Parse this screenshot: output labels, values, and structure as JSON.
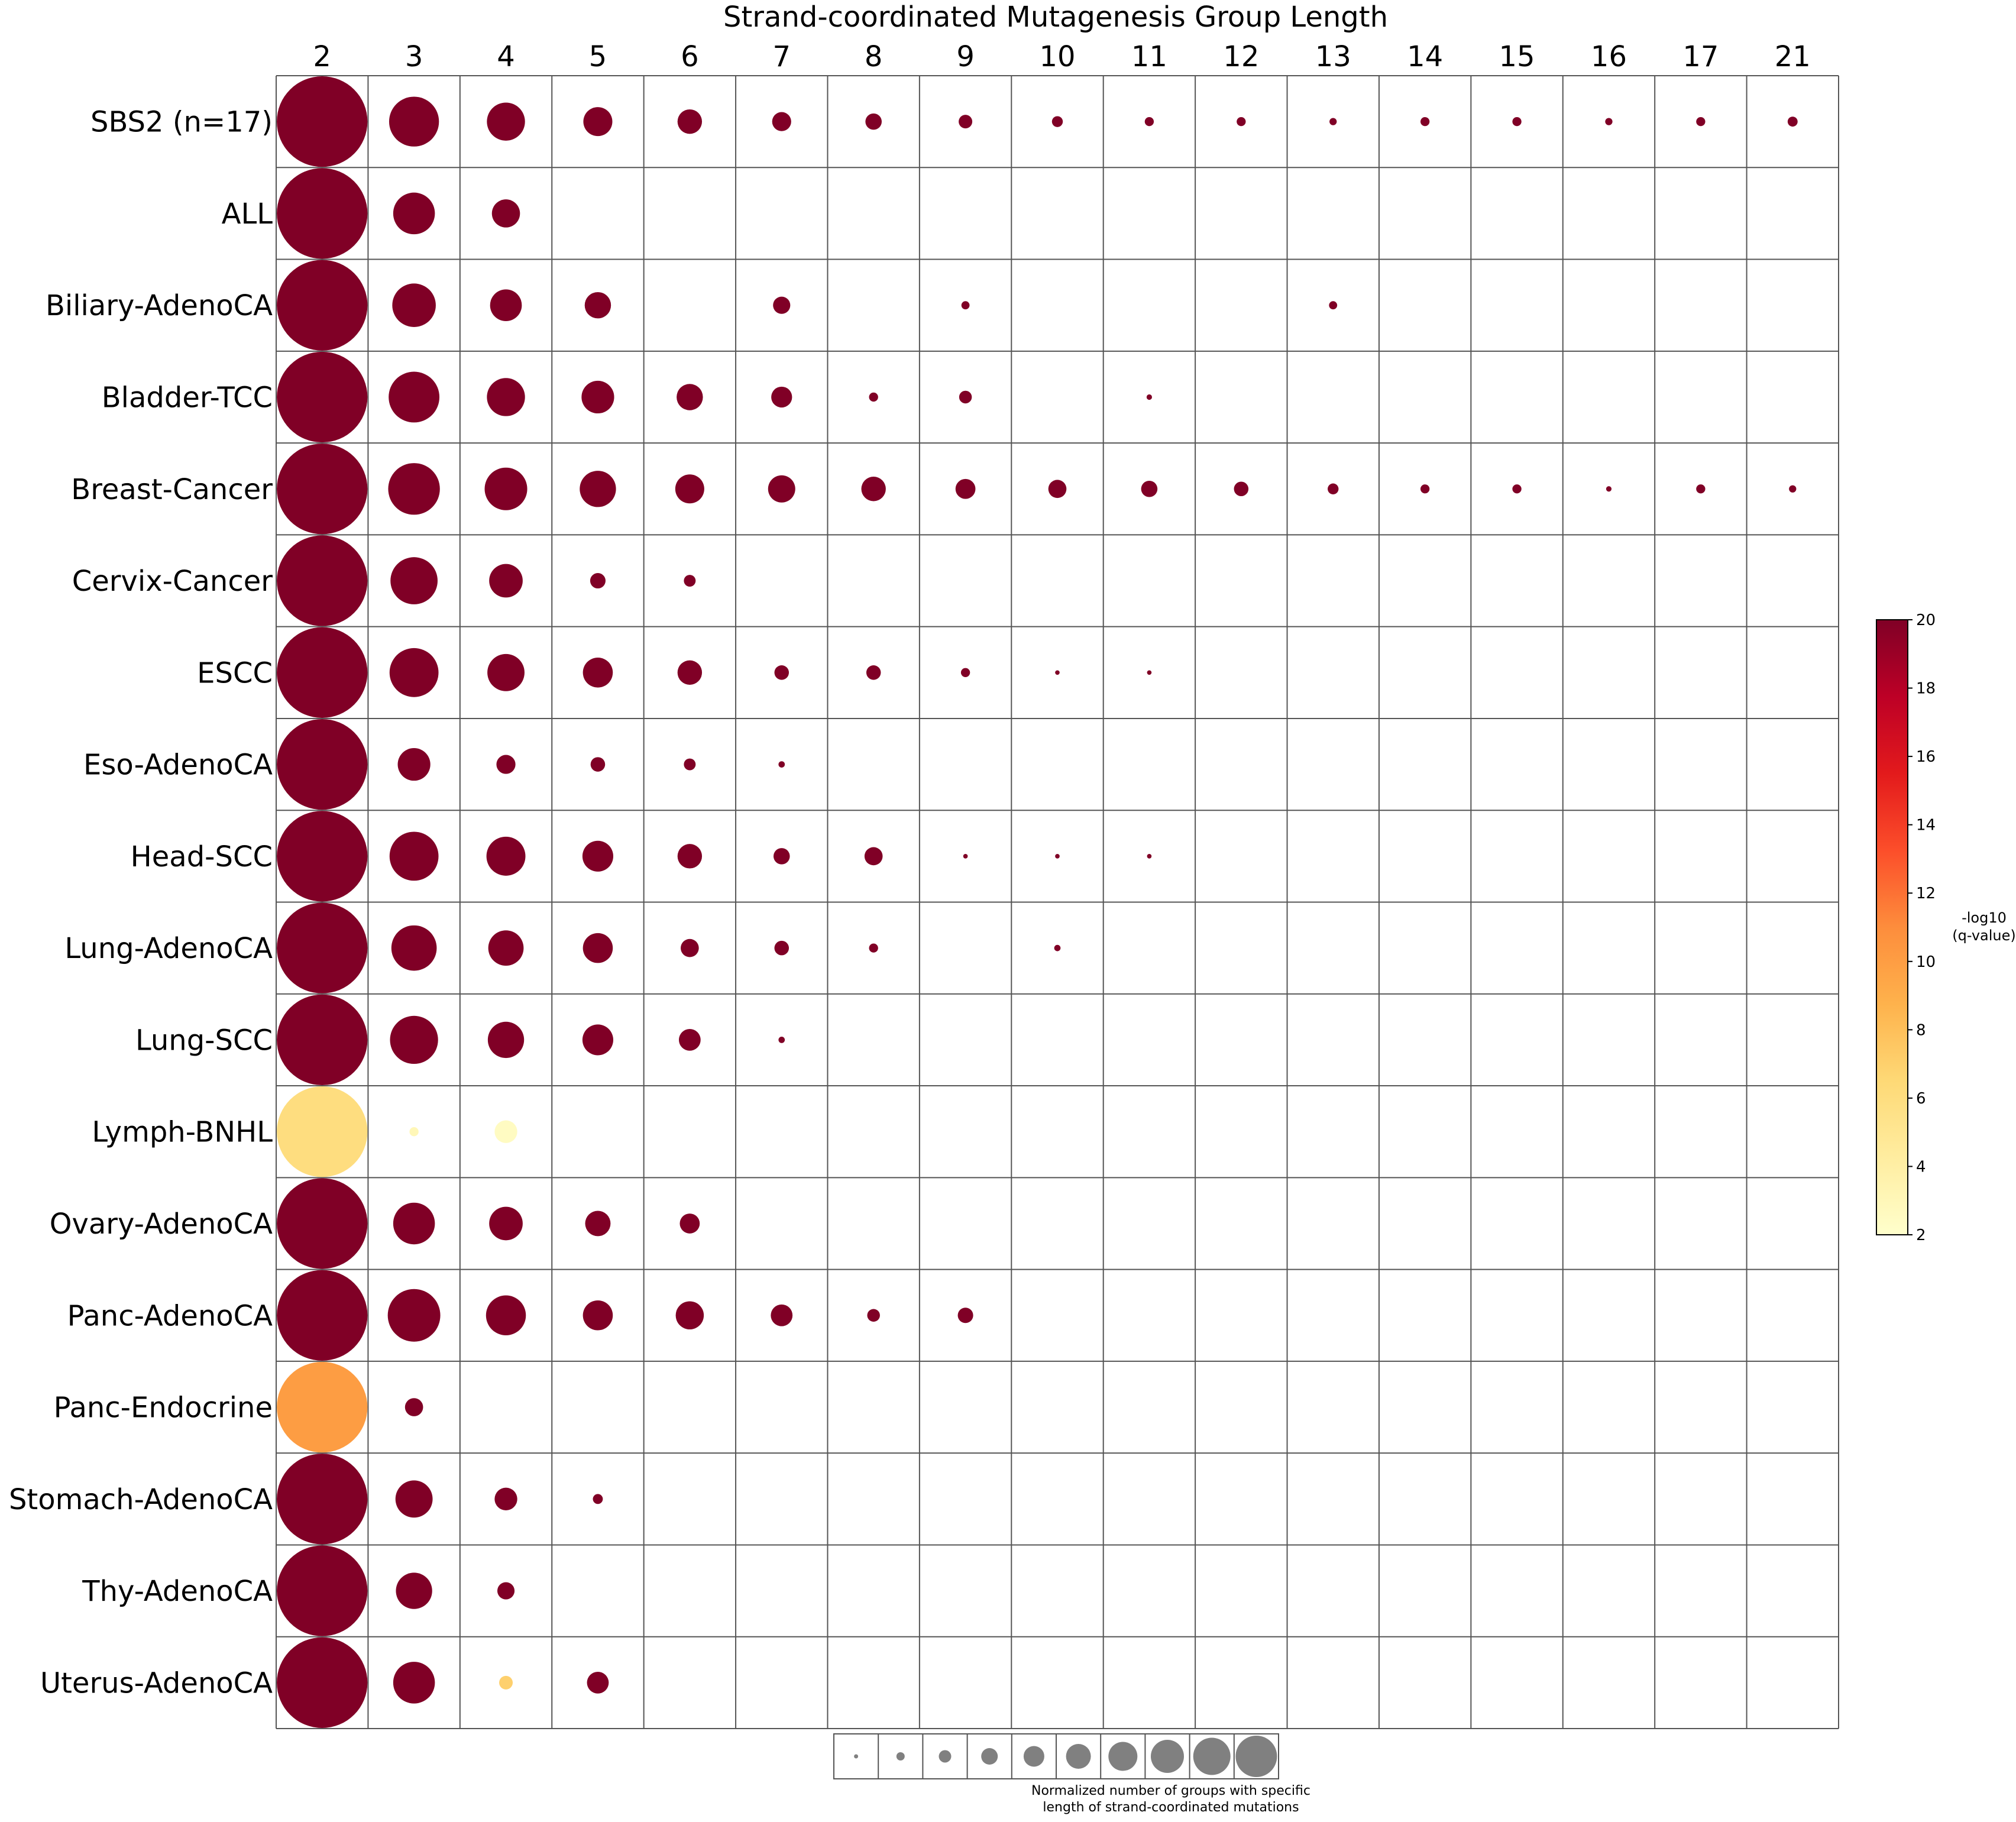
{
  "chart_data": {
    "type": "bubble-grid",
    "title": "Strand-coordinated Mutagenesis Group Length",
    "columns": [
      "2",
      "3",
      "4",
      "5",
      "6",
      "7",
      "8",
      "9",
      "10",
      "11",
      "12",
      "13",
      "14",
      "15",
      "16",
      "17",
      "21"
    ],
    "rows": [
      {
        "label": "SBS2 (n=17)",
        "cells": [
          {
            "col": "2",
            "size": 1.0,
            "q": 20
          },
          {
            "col": "3",
            "size": 0.55,
            "q": 20
          },
          {
            "col": "4",
            "size": 0.42,
            "q": 20
          },
          {
            "col": "5",
            "size": 0.32,
            "q": 20
          },
          {
            "col": "6",
            "size": 0.27,
            "q": 20
          },
          {
            "col": "7",
            "size": 0.21,
            "q": 20
          },
          {
            "col": "8",
            "size": 0.18,
            "q": 20
          },
          {
            "col": "9",
            "size": 0.15,
            "q": 20
          },
          {
            "col": "10",
            "size": 0.12,
            "q": 20
          },
          {
            "col": "11",
            "size": 0.1,
            "q": 20
          },
          {
            "col": "12",
            "size": 0.1,
            "q": 20
          },
          {
            "col": "13",
            "size": 0.08,
            "q": 20
          },
          {
            "col": "14",
            "size": 0.1,
            "q": 20
          },
          {
            "col": "15",
            "size": 0.1,
            "q": 20
          },
          {
            "col": "16",
            "size": 0.08,
            "q": 20
          },
          {
            "col": "17",
            "size": 0.1,
            "q": 20
          },
          {
            "col": "21",
            "size": 0.11,
            "q": 20
          }
        ]
      },
      {
        "label": "ALL",
        "cells": [
          {
            "col": "2",
            "size": 1.0,
            "q": 20
          },
          {
            "col": "3",
            "size": 0.46,
            "q": 20
          },
          {
            "col": "4",
            "size": 0.31,
            "q": 20
          }
        ]
      },
      {
        "label": "Biliary-AdenoCA",
        "cells": [
          {
            "col": "2",
            "size": 1.0,
            "q": 20
          },
          {
            "col": "3",
            "size": 0.48,
            "q": 20
          },
          {
            "col": "4",
            "size": 0.35,
            "q": 20
          },
          {
            "col": "5",
            "size": 0.29,
            "q": 20
          },
          {
            "col": "7",
            "size": 0.19,
            "q": 20
          },
          {
            "col": "9",
            "size": 0.09,
            "q": 20
          },
          {
            "col": "13",
            "size": 0.09,
            "q": 20
          }
        ]
      },
      {
        "label": "Bladder-TCC",
        "cells": [
          {
            "col": "2",
            "size": 1.0,
            "q": 20
          },
          {
            "col": "3",
            "size": 0.56,
            "q": 20
          },
          {
            "col": "4",
            "size": 0.42,
            "q": 20
          },
          {
            "col": "5",
            "size": 0.36,
            "q": 20
          },
          {
            "col": "6",
            "size": 0.29,
            "q": 20
          },
          {
            "col": "7",
            "size": 0.23,
            "q": 20
          },
          {
            "col": "8",
            "size": 0.1,
            "q": 20
          },
          {
            "col": "9",
            "size": 0.14,
            "q": 20
          },
          {
            "col": "11",
            "size": 0.06,
            "q": 20
          }
        ]
      },
      {
        "label": "Breast-Cancer",
        "cells": [
          {
            "col": "2",
            "size": 1.0,
            "q": 20
          },
          {
            "col": "3",
            "size": 0.57,
            "q": 20
          },
          {
            "col": "4",
            "size": 0.47,
            "q": 20
          },
          {
            "col": "5",
            "size": 0.4,
            "q": 20
          },
          {
            "col": "6",
            "size": 0.32,
            "q": 20
          },
          {
            "col": "7",
            "size": 0.3,
            "q": 20
          },
          {
            "col": "8",
            "size": 0.27,
            "q": 20
          },
          {
            "col": "9",
            "size": 0.22,
            "q": 20
          },
          {
            "col": "10",
            "size": 0.2,
            "q": 20
          },
          {
            "col": "11",
            "size": 0.18,
            "q": 20
          },
          {
            "col": "12",
            "size": 0.16,
            "q": 20
          },
          {
            "col": "13",
            "size": 0.12,
            "q": 20
          },
          {
            "col": "14",
            "size": 0.1,
            "q": 20
          },
          {
            "col": "15",
            "size": 0.1,
            "q": 20
          },
          {
            "col": "16",
            "size": 0.06,
            "q": 20
          },
          {
            "col": "17",
            "size": 0.1,
            "q": 20
          },
          {
            "col": "21",
            "size": 0.08,
            "q": 20
          }
        ]
      },
      {
        "label": "Cervix-Cancer",
        "cells": [
          {
            "col": "2",
            "size": 1.0,
            "q": 20
          },
          {
            "col": "3",
            "size": 0.52,
            "q": 20
          },
          {
            "col": "4",
            "size": 0.37,
            "q": 20
          },
          {
            "col": "5",
            "size": 0.17,
            "q": 20
          },
          {
            "col": "6",
            "size": 0.13,
            "q": 20
          }
        ]
      },
      {
        "label": "ESCC",
        "cells": [
          {
            "col": "2",
            "size": 1.0,
            "q": 20
          },
          {
            "col": "3",
            "size": 0.54,
            "q": 20
          },
          {
            "col": "4",
            "size": 0.41,
            "q": 20
          },
          {
            "col": "5",
            "size": 0.33,
            "q": 20
          },
          {
            "col": "6",
            "size": 0.27,
            "q": 20
          },
          {
            "col": "7",
            "size": 0.16,
            "q": 20
          },
          {
            "col": "8",
            "size": 0.16,
            "q": 20
          },
          {
            "col": "9",
            "size": 0.1,
            "q": 20
          },
          {
            "col": "10",
            "size": 0.05,
            "q": 20
          },
          {
            "col": "11",
            "size": 0.05,
            "q": 20
          }
        ]
      },
      {
        "label": "Eso-AdenoCA",
        "cells": [
          {
            "col": "2",
            "size": 1.0,
            "q": 20
          },
          {
            "col": "3",
            "size": 0.36,
            "q": 20
          },
          {
            "col": "4",
            "size": 0.21,
            "q": 20
          },
          {
            "col": "5",
            "size": 0.16,
            "q": 20
          },
          {
            "col": "6",
            "size": 0.13,
            "q": 20
          },
          {
            "col": "7",
            "size": 0.07,
            "q": 20
          }
        ]
      },
      {
        "label": "Head-SCC",
        "cells": [
          {
            "col": "2",
            "size": 1.0,
            "q": 20
          },
          {
            "col": "3",
            "size": 0.54,
            "q": 20
          },
          {
            "col": "4",
            "size": 0.43,
            "q": 20
          },
          {
            "col": "5",
            "size": 0.34,
            "q": 20
          },
          {
            "col": "6",
            "size": 0.27,
            "q": 20
          },
          {
            "col": "7",
            "size": 0.18,
            "q": 20
          },
          {
            "col": "8",
            "size": 0.2,
            "q": 20
          },
          {
            "col": "9",
            "size": 0.05,
            "q": 20
          },
          {
            "col": "10",
            "size": 0.05,
            "q": 20
          },
          {
            "col": "11",
            "size": 0.05,
            "q": 20
          }
        ]
      },
      {
        "label": "Lung-AdenoCA",
        "cells": [
          {
            "col": "2",
            "size": 1.0,
            "q": 20
          },
          {
            "col": "3",
            "size": 0.5,
            "q": 20
          },
          {
            "col": "4",
            "size": 0.39,
            "q": 20
          },
          {
            "col": "5",
            "size": 0.33,
            "q": 20
          },
          {
            "col": "6",
            "size": 0.2,
            "q": 20
          },
          {
            "col": "7",
            "size": 0.16,
            "q": 20
          },
          {
            "col": "8",
            "size": 0.1,
            "q": 20
          },
          {
            "col": "10",
            "size": 0.07,
            "q": 20
          }
        ]
      },
      {
        "label": "Lung-SCC",
        "cells": [
          {
            "col": "2",
            "size": 1.0,
            "q": 20
          },
          {
            "col": "3",
            "size": 0.53,
            "q": 20
          },
          {
            "col": "4",
            "size": 0.4,
            "q": 20
          },
          {
            "col": "5",
            "size": 0.34,
            "q": 20
          },
          {
            "col": "6",
            "size": 0.24,
            "q": 20
          },
          {
            "col": "7",
            "size": 0.07,
            "q": 20
          }
        ]
      },
      {
        "label": "Lymph-BNHL",
        "cells": [
          {
            "col": "2",
            "size": 1.0,
            "q": 6
          },
          {
            "col": "3",
            "size": 0.1,
            "q": 3
          },
          {
            "col": "4",
            "size": 0.25,
            "q": 2.5
          }
        ]
      },
      {
        "label": "Ovary-AdenoCA",
        "cells": [
          {
            "col": "2",
            "size": 1.0,
            "q": 20
          },
          {
            "col": "3",
            "size": 0.46,
            "q": 20
          },
          {
            "col": "4",
            "size": 0.37,
            "q": 20
          },
          {
            "col": "5",
            "size": 0.28,
            "q": 20
          },
          {
            "col": "6",
            "size": 0.22,
            "q": 20
          }
        ]
      },
      {
        "label": "Panc-AdenoCA",
        "cells": [
          {
            "col": "2",
            "size": 1.0,
            "q": 20
          },
          {
            "col": "3",
            "size": 0.58,
            "q": 20
          },
          {
            "col": "4",
            "size": 0.44,
            "q": 20
          },
          {
            "col": "5",
            "size": 0.33,
            "q": 20
          },
          {
            "col": "6",
            "size": 0.31,
            "q": 20
          },
          {
            "col": "7",
            "size": 0.24,
            "q": 20
          },
          {
            "col": "8",
            "size": 0.14,
            "q": 20
          },
          {
            "col": "9",
            "size": 0.17,
            "q": 20
          }
        ]
      },
      {
        "label": "Panc-Endocrine",
        "cells": [
          {
            "col": "2",
            "size": 1.0,
            "q": 10
          },
          {
            "col": "3",
            "size": 0.2,
            "q": 20
          }
        ]
      },
      {
        "label": "Stomach-AdenoCA",
        "cells": [
          {
            "col": "2",
            "size": 1.0,
            "q": 20
          },
          {
            "col": "3",
            "size": 0.41,
            "q": 20
          },
          {
            "col": "4",
            "size": 0.25,
            "q": 20
          },
          {
            "col": "5",
            "size": 0.11,
            "q": 20
          }
        ]
      },
      {
        "label": "Thy-AdenoCA",
        "cells": [
          {
            "col": "2",
            "size": 1.0,
            "q": 20
          },
          {
            "col": "3",
            "size": 0.4,
            "q": 20
          },
          {
            "col": "4",
            "size": 0.19,
            "q": 20
          }
        ]
      },
      {
        "label": "Uterus-AdenoCA",
        "cells": [
          {
            "col": "2",
            "size": 1.0,
            "q": 20
          },
          {
            "col": "3",
            "size": 0.46,
            "q": 20
          },
          {
            "col": "4",
            "size": 0.15,
            "q": 7
          },
          {
            "col": "5",
            "size": 0.24,
            "q": 20
          }
        ]
      }
    ],
    "colorbar": {
      "label_line1": "-log10",
      "label_line2": "(q-value)",
      "min": 2,
      "max": 20,
      "ticks": [
        "2",
        "4",
        "6",
        "8",
        "10",
        "12",
        "14",
        "16",
        "18",
        "20"
      ],
      "colormap": "YlOrRd",
      "stops": [
        "#ffffcc",
        "#ffeda0",
        "#fed976",
        "#feb24c",
        "#fd8d3c",
        "#fc4e2a",
        "#e31a1c",
        "#bd0026",
        "#800026"
      ]
    },
    "size_legend": {
      "caption": "Normalized number of groups with specific\nlength of strand-coordinated mutations",
      "levels": [
        0.1,
        0.2,
        0.3,
        0.4,
        0.5,
        0.6,
        0.7,
        0.8,
        0.9,
        1.0
      ],
      "color": "#808080"
    }
  }
}
